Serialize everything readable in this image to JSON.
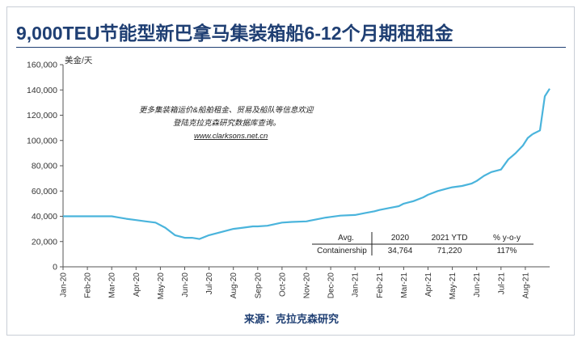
{
  "title": "9,000TEU节能型新巴拿马集装箱船6-12个月期租租金",
  "source": "来源：克拉克森研究",
  "annotation": {
    "line1": "更多集装箱运价&船舶租金、贸易及船队等信息欢迎",
    "line2": "登陆克拉克森研究数据库查询。",
    "url": "www.clarksons.net.cn"
  },
  "colors": {
    "title": "#1f3f73",
    "line": "#4ab4dc",
    "axis": "#333333"
  },
  "chart_data": {
    "type": "line",
    "title": "9,000TEU节能型新巴拿马集装箱船6-12个月期租租金",
    "xlabel": "",
    "ylabel": "美金/天",
    "ylim": [
      0,
      160000
    ],
    "yticks": [
      0,
      20000,
      40000,
      60000,
      80000,
      100000,
      120000,
      140000,
      160000
    ],
    "ytick_labels": [
      "0",
      "20,000",
      "40,000",
      "60,000",
      "80,000",
      "100,000",
      "120,000",
      "140,000",
      "160,000"
    ],
    "xtick_labels": [
      "Jan-20",
      "Feb-20",
      "Mar-20",
      "Apr-20",
      "May-20",
      "Jun-20",
      "Jul-20",
      "Aug-20",
      "Sep-20",
      "Oct-20",
      "Nov-20",
      "Dec-20",
      "Jan-21",
      "Feb-21",
      "Mar-21",
      "Apr-21",
      "May-21",
      "Jun-21",
      "Jul-21",
      "Aug-21"
    ],
    "grid": false,
    "series": [
      {
        "x": [
          0,
          0.5,
          1,
          1.5,
          2,
          2.3,
          2.6,
          3,
          3.4,
          3.8,
          4.2,
          4.6,
          5,
          5.3,
          5.6,
          6,
          6.4,
          7,
          7.4,
          7.8,
          8,
          8.4,
          9,
          9.4,
          10,
          10.4,
          10.8,
          11,
          11.4,
          12,
          12.4,
          12.8,
          13,
          13.4,
          13.8,
          14,
          14.4,
          14.8,
          15,
          15.4,
          15.8,
          16,
          16.4,
          16.8,
          17,
          17.3,
          17.6,
          18,
          18.3,
          18.6,
          18.9,
          19.1,
          19.3
        ],
        "values": [
          40000,
          40000,
          40000,
          40000,
          40000,
          39000,
          38000,
          37000,
          36000,
          35000,
          31000,
          25000,
          23000,
          23000,
          22000,
          25000,
          27000,
          30000,
          31000,
          32000,
          32000,
          32500,
          35000,
          35500,
          36000,
          37500,
          39000,
          39500,
          40500,
          41000,
          42500,
          44000,
          45000,
          46500,
          48000,
          50000,
          52000,
          55000,
          57000,
          60000,
          62000,
          63000,
          64000,
          66000,
          68000,
          72000,
          75000,
          77000,
          85000,
          90000,
          96000,
          102000,
          105000
        ]
      }
    ],
    "end_segment": {
      "x": [
        19.3,
        19.6,
        19.8,
        20
      ],
      "values": [
        105000,
        108000,
        135000,
        141000
      ]
    },
    "table": {
      "headers": [
        "Avg.",
        "2020",
        "2021 YTD",
        "% y-o-y"
      ],
      "rows": [
        [
          "Containership",
          "34,764",
          "71,220",
          "117%"
        ]
      ]
    }
  }
}
